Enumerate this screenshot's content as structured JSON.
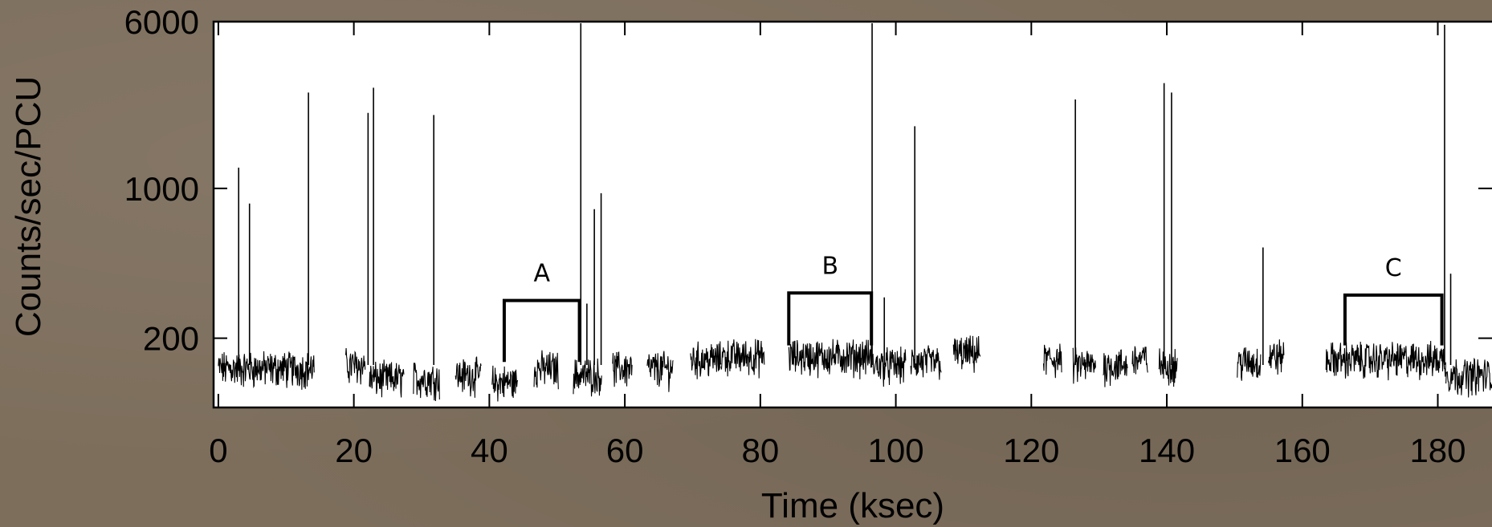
{
  "chart_data": {
    "type": "line",
    "xlabel": "Time (ksec)",
    "ylabel": "Counts/sec/PCU",
    "x_ticks": [
      0,
      20,
      40,
      60,
      80,
      100,
      120,
      140,
      160,
      180
    ],
    "x_tick_labels": [
      "0",
      "20",
      "40",
      "60",
      "80",
      "100",
      "120",
      "140",
      "160",
      "180"
    ],
    "y_ticks": [
      200,
      1000,
      6000
    ],
    "y_tick_labels": [
      "200",
      "1000",
      "6000"
    ],
    "y_scale": "log",
    "xlim": [
      -0.7,
      188
    ],
    "ylim": [
      95,
      6000
    ],
    "grid": false,
    "line_color": "#000000",
    "persistent_segments": [
      {
        "x": [
          0,
          14.2
        ],
        "level": 145
      },
      {
        "x": [
          18.8,
          21.7
        ],
        "level": 150
      },
      {
        "x": [
          22.3,
          27.4
        ],
        "level": 130
      },
      {
        "x": [
          28.8,
          32.7
        ],
        "level": 130
      },
      {
        "x": [
          35,
          38.8
        ],
        "level": 135
      },
      {
        "x": [
          40.4,
          44.2
        ],
        "level": 125
      },
      {
        "x": [
          46.6,
          50.2
        ],
        "level": 145
      },
      {
        "x": [
          52.4,
          56.6
        ],
        "level": 135
      },
      {
        "x": [
          58.2,
          61.1
        ],
        "level": 145
      },
      {
        "x": [
          63.3,
          67.2
        ],
        "level": 145
      },
      {
        "x": [
          69.7,
          74.2
        ],
        "level": 160
      },
      {
        "x": [
          74.2,
          80.6
        ],
        "level": 165
      },
      {
        "x": [
          84.2,
          96.5
        ],
        "level": 165
      },
      {
        "x": [
          96.5,
          101.5
        ],
        "level": 150
      },
      {
        "x": [
          102.2,
          106.7
        ],
        "level": 155
      },
      {
        "x": [
          108.5,
          112.5
        ],
        "level": 170
      },
      {
        "x": [
          121.8,
          124.5
        ],
        "level": 160
      },
      {
        "x": [
          126.1,
          129.5
        ],
        "level": 150
      },
      {
        "x": [
          130.6,
          134.2
        ],
        "level": 150
      },
      {
        "x": [
          134.9,
          137.2
        ],
        "level": 160
      },
      {
        "x": [
          138.8,
          141.6
        ],
        "level": 150
      },
      {
        "x": [
          150.4,
          153.9
        ],
        "level": 155
      },
      {
        "x": [
          155,
          157.3
        ],
        "level": 165
      },
      {
        "x": [
          163.5,
          181.2
        ],
        "level": 160
      },
      {
        "x": [
          181.2,
          188
        ],
        "level": 135
      }
    ],
    "bursts": [
      {
        "x": 3.0,
        "peak": 1250
      },
      {
        "x": 4.6,
        "peak": 850
      },
      {
        "x": 13.3,
        "peak": 2800
      },
      {
        "x": 22.1,
        "peak": 2250
      },
      {
        "x": 22.9,
        "peak": 2950
      },
      {
        "x": 31.8,
        "peak": 2200
      },
      {
        "x": 53.5,
        "peak": 5900
      },
      {
        "x": 54.4,
        "peak": 290
      },
      {
        "x": 55.5,
        "peak": 800
      },
      {
        "x": 56.5,
        "peak": 950
      },
      {
        "x": 96.5,
        "peak": 5900
      },
      {
        "x": 98.3,
        "peak": 310
      },
      {
        "x": 102.8,
        "peak": 1950
      },
      {
        "x": 126.5,
        "peak": 2600
      },
      {
        "x": 139.6,
        "peak": 3100
      },
      {
        "x": 140.7,
        "peak": 2800
      },
      {
        "x": 154.2,
        "peak": 530
      },
      {
        "x": 181.0,
        "peak": 5800
      },
      {
        "x": 181.9,
        "peak": 400
      }
    ],
    "annotations": [
      {
        "label": "A",
        "x_start": 42.2,
        "x_end": 53.3,
        "level": 300,
        "bottom": 155
      },
      {
        "label": "B",
        "x_start": 84.2,
        "x_end": 96.4,
        "level": 325,
        "bottom": 185
      },
      {
        "label": "C",
        "x_start": 166.3,
        "x_end": 180.6,
        "level": 318,
        "bottom": 185
      }
    ]
  }
}
